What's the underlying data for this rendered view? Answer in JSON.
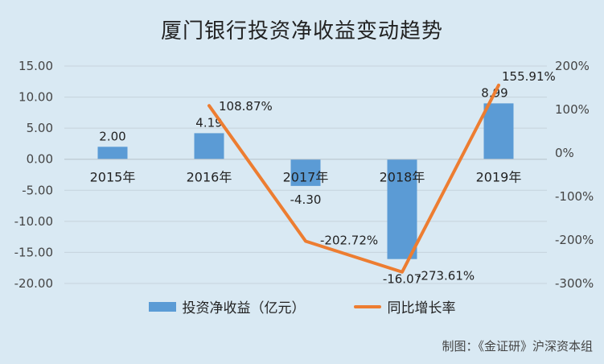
{
  "chart_data": {
    "type": "bar",
    "title": "厦门银行投资净收益变动趋势",
    "categories": [
      "2015年",
      "2016年",
      "2017年",
      "2018年",
      "2019年"
    ],
    "series": [
      {
        "name": "投资净收益（亿元）",
        "type": "bar",
        "axis": "left",
        "values": [
          2.0,
          4.19,
          -4.3,
          -16.07,
          8.99
        ],
        "labels": [
          "2.00",
          "4.19",
          "-4.30",
          "-16.07",
          "8.99"
        ]
      },
      {
        "name": "同比增长率",
        "type": "line",
        "axis": "right",
        "values": [
          null,
          108.87,
          -202.72,
          -273.61,
          155.91
        ],
        "labels": [
          "",
          "108.87%",
          "-202.72%",
          "-273.61%",
          "155.91%"
        ]
      }
    ],
    "left_axis": {
      "ylim": [
        -20,
        15
      ],
      "ticks": [
        "-20.00",
        "-15.00",
        "-10.00",
        "-5.00",
        "0.00",
        "5.00",
        "10.00",
        "15.00"
      ]
    },
    "right_axis": {
      "ylim": [
        -300,
        200
      ],
      "ticks": [
        "-300%",
        "-200%",
        "-100%",
        "0%",
        "100%",
        "200%"
      ]
    },
    "grid": true,
    "legend_position": "bottom",
    "colors": {
      "bar": "#5b9bd5",
      "line": "#ed7d31",
      "background": "#d9e9f3",
      "grid": "#c6d3dc"
    }
  },
  "credit": "制图：《金证研》沪深资本组"
}
